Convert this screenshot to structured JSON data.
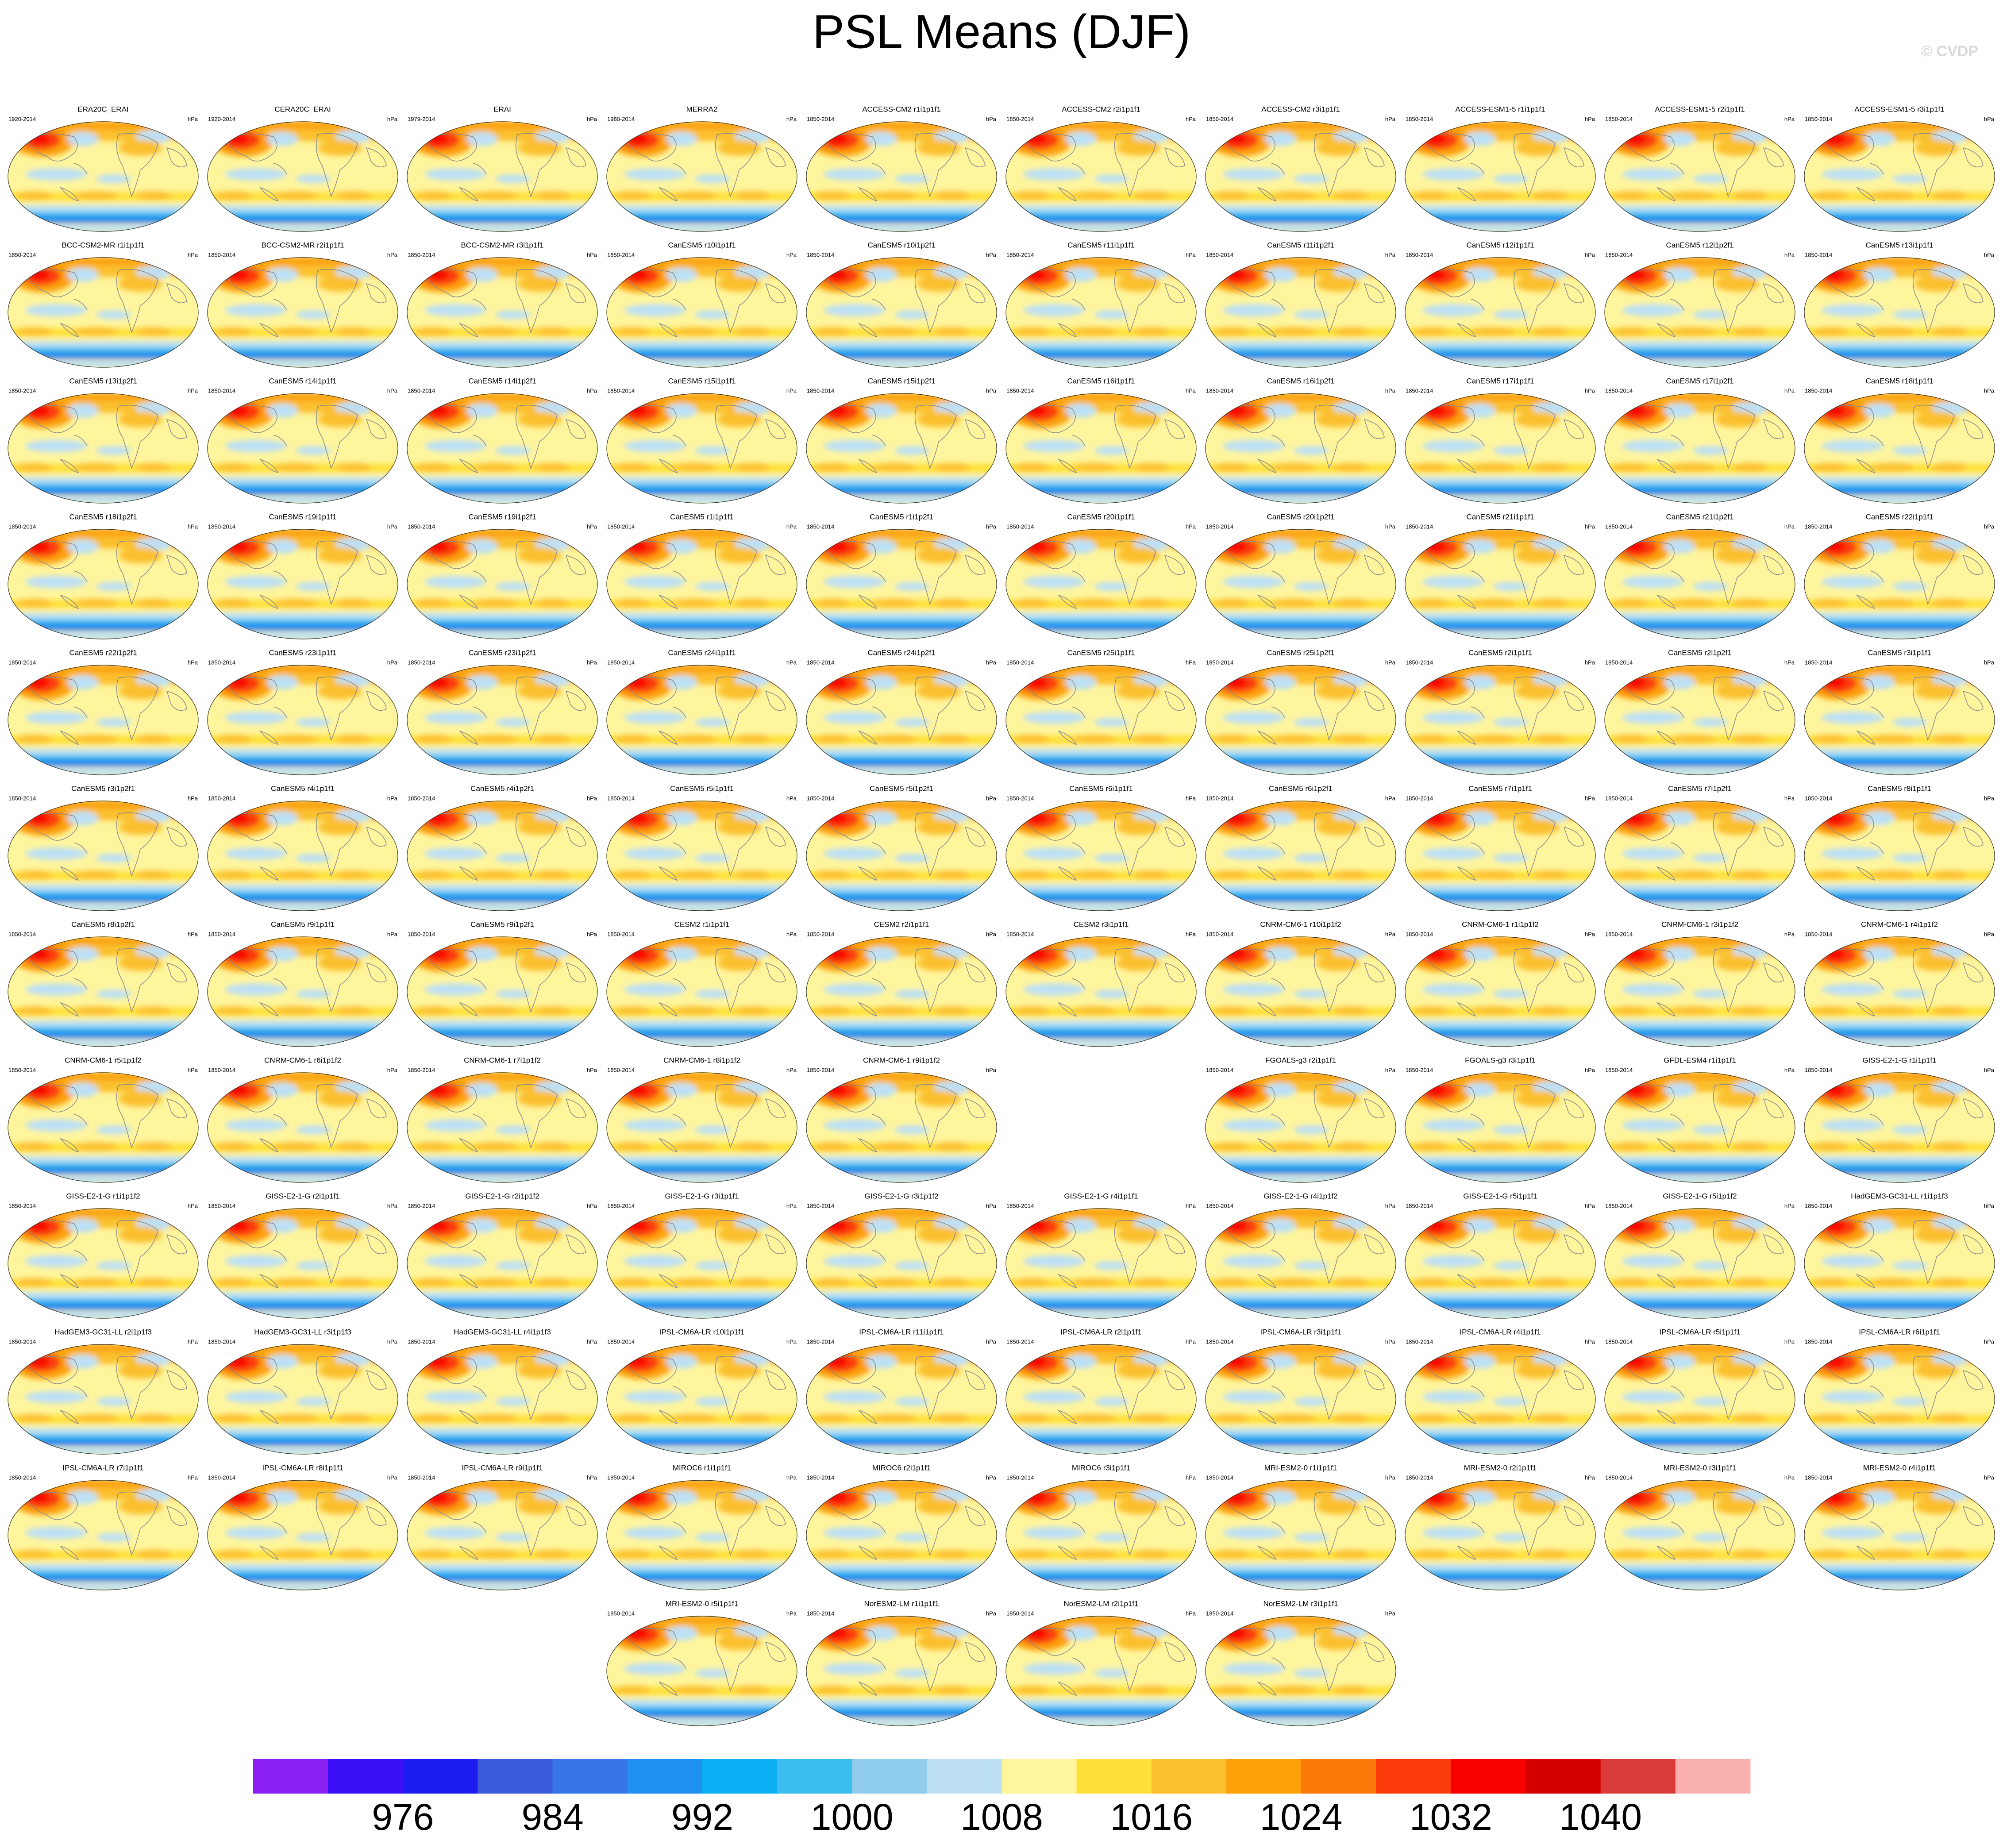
{
  "title": "PSL Means (DJF)",
  "watermark": "© CVDP",
  "rows": [
    [
      {
        "title": "ERA20C_ERAI",
        "period": "1920-2014",
        "units": "hPa"
      },
      {
        "title": "CERA20C_ERAI",
        "period": "1920-2014",
        "units": "hPa"
      },
      {
        "title": "ERAI",
        "period": "1979-2014",
        "units": "hPa"
      },
      {
        "title": "MERRA2",
        "period": "1980-2014",
        "units": "hPa"
      },
      {
        "title": "ACCESS-CM2 r1i1p1f1",
        "period": "1850-2014",
        "units": "hPa"
      },
      {
        "title": "ACCESS-CM2 r2i1p1f1",
        "period": "1850-2014",
        "units": "hPa"
      },
      {
        "title": "ACCESS-CM2 r3i1p1f1",
        "period": "1850-2014",
        "units": "hPa"
      },
      {
        "title": "ACCESS-ESM1-5 r1i1p1f1",
        "period": "1850-2014",
        "units": "hPa"
      },
      {
        "title": "ACCESS-ESM1-5 r2i1p1f1",
        "period": "1850-2014",
        "units": "hPa"
      },
      {
        "title": "ACCESS-ESM1-5 r3i1p1f1",
        "period": "1850-2014",
        "units": "hPa"
      }
    ],
    [
      {
        "title": "BCC-CSM2-MR r1i1p1f1",
        "period": "1850-2014",
        "units": "hPa"
      },
      {
        "title": "BCC-CSM2-MR r2i1p1f1",
        "period": "1850-2014",
        "units": "hPa"
      },
      {
        "title": "BCC-CSM2-MR r3i1p1f1",
        "period": "1850-2014",
        "units": "hPa"
      },
      {
        "title": "CanESM5 r10i1p1f1",
        "period": "1850-2014",
        "units": "hPa"
      },
      {
        "title": "CanESM5 r10i1p2f1",
        "period": "1850-2014",
        "units": "hPa"
      },
      {
        "title": "CanESM5 r11i1p1f1",
        "period": "1850-2014",
        "units": "hPa"
      },
      {
        "title": "CanESM5 r11i1p2f1",
        "period": "1850-2014",
        "units": "hPa"
      },
      {
        "title": "CanESM5 r12i1p1f1",
        "period": "1850-2014",
        "units": "hPa"
      },
      {
        "title": "CanESM5 r12i1p2f1",
        "period": "1850-2014",
        "units": "hPa"
      },
      {
        "title": "CanESM5 r13i1p1f1",
        "period": "1850-2014",
        "units": "hPa"
      }
    ],
    [
      {
        "title": "CanESM5 r13i1p2f1",
        "period": "1850-2014",
        "units": "hPa"
      },
      {
        "title": "CanESM5 r14i1p1f1",
        "period": "1850-2014",
        "units": "hPa"
      },
      {
        "title": "CanESM5 r14i1p2f1",
        "period": "1850-2014",
        "units": "hPa"
      },
      {
        "title": "CanESM5 r15i1p1f1",
        "period": "1850-2014",
        "units": "hPa"
      },
      {
        "title": "CanESM5 r15i1p2f1",
        "period": "1850-2014",
        "units": "hPa"
      },
      {
        "title": "CanESM5 r16i1p1f1",
        "period": "1850-2014",
        "units": "hPa"
      },
      {
        "title": "CanESM5 r16i1p2f1",
        "period": "1850-2014",
        "units": "hPa"
      },
      {
        "title": "CanESM5 r17i1p1f1",
        "period": "1850-2014",
        "units": "hPa"
      },
      {
        "title": "CanESM5 r17i1p2f1",
        "period": "1850-2014",
        "units": "hPa"
      },
      {
        "title": "CanESM5 r18i1p1f1",
        "period": "1850-2014",
        "units": "hPa"
      }
    ],
    [
      {
        "title": "CanESM5 r18i1p2f1",
        "period": "1850-2014",
        "units": "hPa"
      },
      {
        "title": "CanESM5 r19i1p1f1",
        "period": "1850-2014",
        "units": "hPa"
      },
      {
        "title": "CanESM5 r19i1p2f1",
        "period": "1850-2014",
        "units": "hPa"
      },
      {
        "title": "CanESM5 r1i1p1f1",
        "period": "1850-2014",
        "units": "hPa"
      },
      {
        "title": "CanESM5 r1i1p2f1",
        "period": "1850-2014",
        "units": "hPa"
      },
      {
        "title": "CanESM5 r20i1p1f1",
        "period": "1850-2014",
        "units": "hPa"
      },
      {
        "title": "CanESM5 r20i1p2f1",
        "period": "1850-2014",
        "units": "hPa"
      },
      {
        "title": "CanESM5 r21i1p1f1",
        "period": "1850-2014",
        "units": "hPa"
      },
      {
        "title": "CanESM5 r21i1p2f1",
        "period": "1850-2014",
        "units": "hPa"
      },
      {
        "title": "CanESM5 r22i1p1f1",
        "period": "1850-2014",
        "units": "hPa"
      }
    ],
    [
      {
        "title": "CanESM5 r22i1p2f1",
        "period": "1850-2014",
        "units": "hPa"
      },
      {
        "title": "CanESM5 r23i1p1f1",
        "period": "1850-2014",
        "units": "hPa"
      },
      {
        "title": "CanESM5 r23i1p2f1",
        "period": "1850-2014",
        "units": "hPa"
      },
      {
        "title": "CanESM5 r24i1p1f1",
        "period": "1850-2014",
        "units": "hPa"
      },
      {
        "title": "CanESM5 r24i1p2f1",
        "period": "1850-2014",
        "units": "hPa"
      },
      {
        "title": "CanESM5 r25i1p1f1",
        "period": "1850-2014",
        "units": "hPa"
      },
      {
        "title": "CanESM5 r25i1p2f1",
        "period": "1850-2014",
        "units": "hPa"
      },
      {
        "title": "CanESM5 r2i1p1f1",
        "period": "1850-2014",
        "units": "hPa"
      },
      {
        "title": "CanESM5 r2i1p2f1",
        "period": "1850-2014",
        "units": "hPa"
      },
      {
        "title": "CanESM5 r3i1p1f1",
        "period": "1850-2014",
        "units": "hPa"
      }
    ],
    [
      {
        "title": "CanESM5 r3i1p2f1",
        "period": "1850-2014",
        "units": "hPa"
      },
      {
        "title": "CanESM5 r4i1p1f1",
        "period": "1850-2014",
        "units": "hPa"
      },
      {
        "title": "CanESM5 r4i1p2f1",
        "period": "1850-2014",
        "units": "hPa"
      },
      {
        "title": "CanESM5 r5i1p1f1",
        "period": "1850-2014",
        "units": "hPa"
      },
      {
        "title": "CanESM5 r5i1p2f1",
        "period": "1850-2014",
        "units": "hPa"
      },
      {
        "title": "CanESM5 r6i1p1f1",
        "period": "1850-2014",
        "units": "hPa"
      },
      {
        "title": "CanESM5 r6i1p2f1",
        "period": "1850-2014",
        "units": "hPa"
      },
      {
        "title": "CanESM5 r7i1p1f1",
        "period": "1850-2014",
        "units": "hPa"
      },
      {
        "title": "CanESM5 r7i1p2f1",
        "period": "1850-2014",
        "units": "hPa"
      },
      {
        "title": "CanESM5 r8i1p1f1",
        "period": "1850-2014",
        "units": "hPa"
      }
    ],
    [
      {
        "title": "CanESM5 r8i1p2f1",
        "period": "1850-2014",
        "units": "hPa"
      },
      {
        "title": "CanESM5 r9i1p1f1",
        "period": "1850-2014",
        "units": "hPa"
      },
      {
        "title": "CanESM5 r9i1p2f1",
        "period": "1850-2014",
        "units": "hPa"
      },
      {
        "title": "CESM2 r1i1p1f1",
        "period": "1850-2014",
        "units": "hPa"
      },
      {
        "title": "CESM2 r2i1p1f1",
        "period": "1850-2014",
        "units": "hPa"
      },
      {
        "title": "CESM2 r3i1p1f1",
        "period": "1850-2014",
        "units": "hPa"
      },
      {
        "title": "CNRM-CM6-1 r10i1p1f2",
        "period": "1850-2014",
        "units": "hPa"
      },
      {
        "title": "CNRM-CM6-1 r1i1p1f2",
        "period": "1850-2014",
        "units": "hPa"
      },
      {
        "title": "CNRM-CM6-1 r3i1p1f2",
        "period": "1850-2014",
        "units": "hPa"
      },
      {
        "title": "CNRM-CM6-1 r4i1p1f2",
        "period": "1850-2014",
        "units": "hPa"
      }
    ],
    [
      {
        "title": "CNRM-CM6-1 r5i1p1f2",
        "period": "1850-2014",
        "units": "hPa"
      },
      {
        "title": "CNRM-CM6-1 r6i1p1f2",
        "period": "1850-2014",
        "units": "hPa"
      },
      {
        "title": "CNRM-CM6-1 r7i1p1f2",
        "period": "1850-2014",
        "units": "hPa"
      },
      {
        "title": "CNRM-CM6-1 r8i1p1f2",
        "period": "1850-2014",
        "units": "hPa"
      },
      {
        "title": "CNRM-CM6-1 r9i1p1f2",
        "period": "1850-2014",
        "units": "hPa"
      },
      null,
      {
        "title": "FGOALS-g3 r2i1p1f1",
        "period": "1850-2014",
        "units": "hPa"
      },
      {
        "title": "FGOALS-g3 r3i1p1f1",
        "period": "1850-2014",
        "units": "hPa"
      },
      {
        "title": "GFDL-ESM4 r1i1p1f1",
        "period": "1850-2014",
        "units": "hPa"
      },
      {
        "title": "GISS-E2-1-G r1i1p1f1",
        "period": "1850-2014",
        "units": "hPa"
      }
    ],
    [
      {
        "title": "GISS-E2-1-G r1i1p1f2",
        "period": "1850-2014",
        "units": "hPa"
      },
      {
        "title": "GISS-E2-1-G r2i1p1f1",
        "period": "1850-2014",
        "units": "hPa"
      },
      {
        "title": "GISS-E2-1-G r2i1p1f2",
        "period": "1850-2014",
        "units": "hPa"
      },
      {
        "title": "GISS-E2-1-G r3i1p1f1",
        "period": "1850-2014",
        "units": "hPa"
      },
      {
        "title": "GISS-E2-1-G r3i1p1f2",
        "period": "1850-2014",
        "units": "hPa"
      },
      {
        "title": "GISS-E2-1-G r4i1p1f1",
        "period": "1850-2014",
        "units": "hPa"
      },
      {
        "title": "GISS-E2-1-G r4i1p1f2",
        "period": "1850-2014",
        "units": "hPa"
      },
      {
        "title": "GISS-E2-1-G r5i1p1f1",
        "period": "1850-2014",
        "units": "hPa"
      },
      {
        "title": "GISS-E2-1-G r5i1p1f2",
        "period": "1850-2014",
        "units": "hPa"
      },
      {
        "title": "HadGEM3-GC31-LL r1i1p1f3",
        "period": "1850-2014",
        "units": "hPa"
      }
    ],
    [
      {
        "title": "HadGEM3-GC31-LL r2i1p1f3",
        "period": "1850-2014",
        "units": "hPa"
      },
      {
        "title": "HadGEM3-GC31-LL r3i1p1f3",
        "period": "1850-2014",
        "units": "hPa"
      },
      {
        "title": "HadGEM3-GC31-LL r4i1p1f3",
        "period": "1850-2014",
        "units": "hPa"
      },
      {
        "title": "IPSL-CM6A-LR r10i1p1f1",
        "period": "1850-2014",
        "units": "hPa"
      },
      {
        "title": "IPSL-CM6A-LR r11i1p1f1",
        "period": "1850-2014",
        "units": "hPa"
      },
      {
        "title": "IPSL-CM6A-LR r2i1p1f1",
        "period": "1850-2014",
        "units": "hPa"
      },
      {
        "title": "IPSL-CM6A-LR r3i1p1f1",
        "period": "1850-2014",
        "units": "hPa"
      },
      {
        "title": "IPSL-CM6A-LR r4i1p1f1",
        "period": "1850-2014",
        "units": "hPa"
      },
      {
        "title": "IPSL-CM6A-LR r5i1p1f1",
        "period": "1850-2014",
        "units": "hPa"
      },
      {
        "title": "IPSL-CM6A-LR r6i1p1f1",
        "period": "1850-2014",
        "units": "hPa"
      }
    ],
    [
      {
        "title": "IPSL-CM6A-LR r7i1p1f1",
        "period": "1850-2014",
        "units": "hPa"
      },
      {
        "title": "IPSL-CM6A-LR r8i1p1f1",
        "period": "1850-2014",
        "units": "hPa"
      },
      {
        "title": "IPSL-CM6A-LR r9i1p1f1",
        "period": "1850-2014",
        "units": "hPa"
      },
      {
        "title": "MIROC6 r1i1p1f1",
        "period": "1850-2014",
        "units": "hPa"
      },
      {
        "title": "MIROC6 r2i1p1f1",
        "period": "1850-2014",
        "units": "hPa"
      },
      {
        "title": "MIROC6 r3i1p1f1",
        "period": "1850-2014",
        "units": "hPa"
      },
      {
        "title": "MRI-ESM2-0 r1i1p1f1",
        "period": "1850-2014",
        "units": "hPa"
      },
      {
        "title": "MRI-ESM2-0 r2i1p1f1",
        "period": "1850-2014",
        "units": "hPa"
      },
      {
        "title": "MRI-ESM2-0 r3i1p1f1",
        "period": "1850-2014",
        "units": "hPa"
      },
      {
        "title": "MRI-ESM2-0 r4i1p1f1",
        "period": "1850-2014",
        "units": "hPa"
      }
    ],
    [
      {
        "title": "MRI-ESM2-0 r5i1p1f1",
        "period": "1850-2014",
        "units": "hPa"
      },
      {
        "title": "NorESM2-LM r1i1p1f1",
        "period": "1850-2014",
        "units": "hPa"
      },
      {
        "title": "NorESM2-LM r2i1p1f1",
        "period": "1850-2014",
        "units": "hPa"
      },
      {
        "title": "NorESM2-LM r3i1p1f1",
        "period": "1850-2014",
        "units": "hPa"
      }
    ]
  ],
  "colorbar": {
    "colors": [
      "#8b1ff2",
      "#3a0ff5",
      "#1c1cf0",
      "#3b5bdb",
      "#3676e8",
      "#1f8ff0",
      "#0cb0f5",
      "#3cbdf0",
      "#90ccec",
      "#bde0f5",
      "#fff59d",
      "#ffe03a",
      "#fbc02d",
      "#fca00a",
      "#fb7a0a",
      "#fb3c0a",
      "#f80000",
      "#d40000",
      "#d93a3a",
      "#fbb0b0"
    ],
    "labels": [
      976,
      984,
      992,
      1000,
      1008,
      1016,
      1024,
      1032,
      1040
    ]
  }
}
